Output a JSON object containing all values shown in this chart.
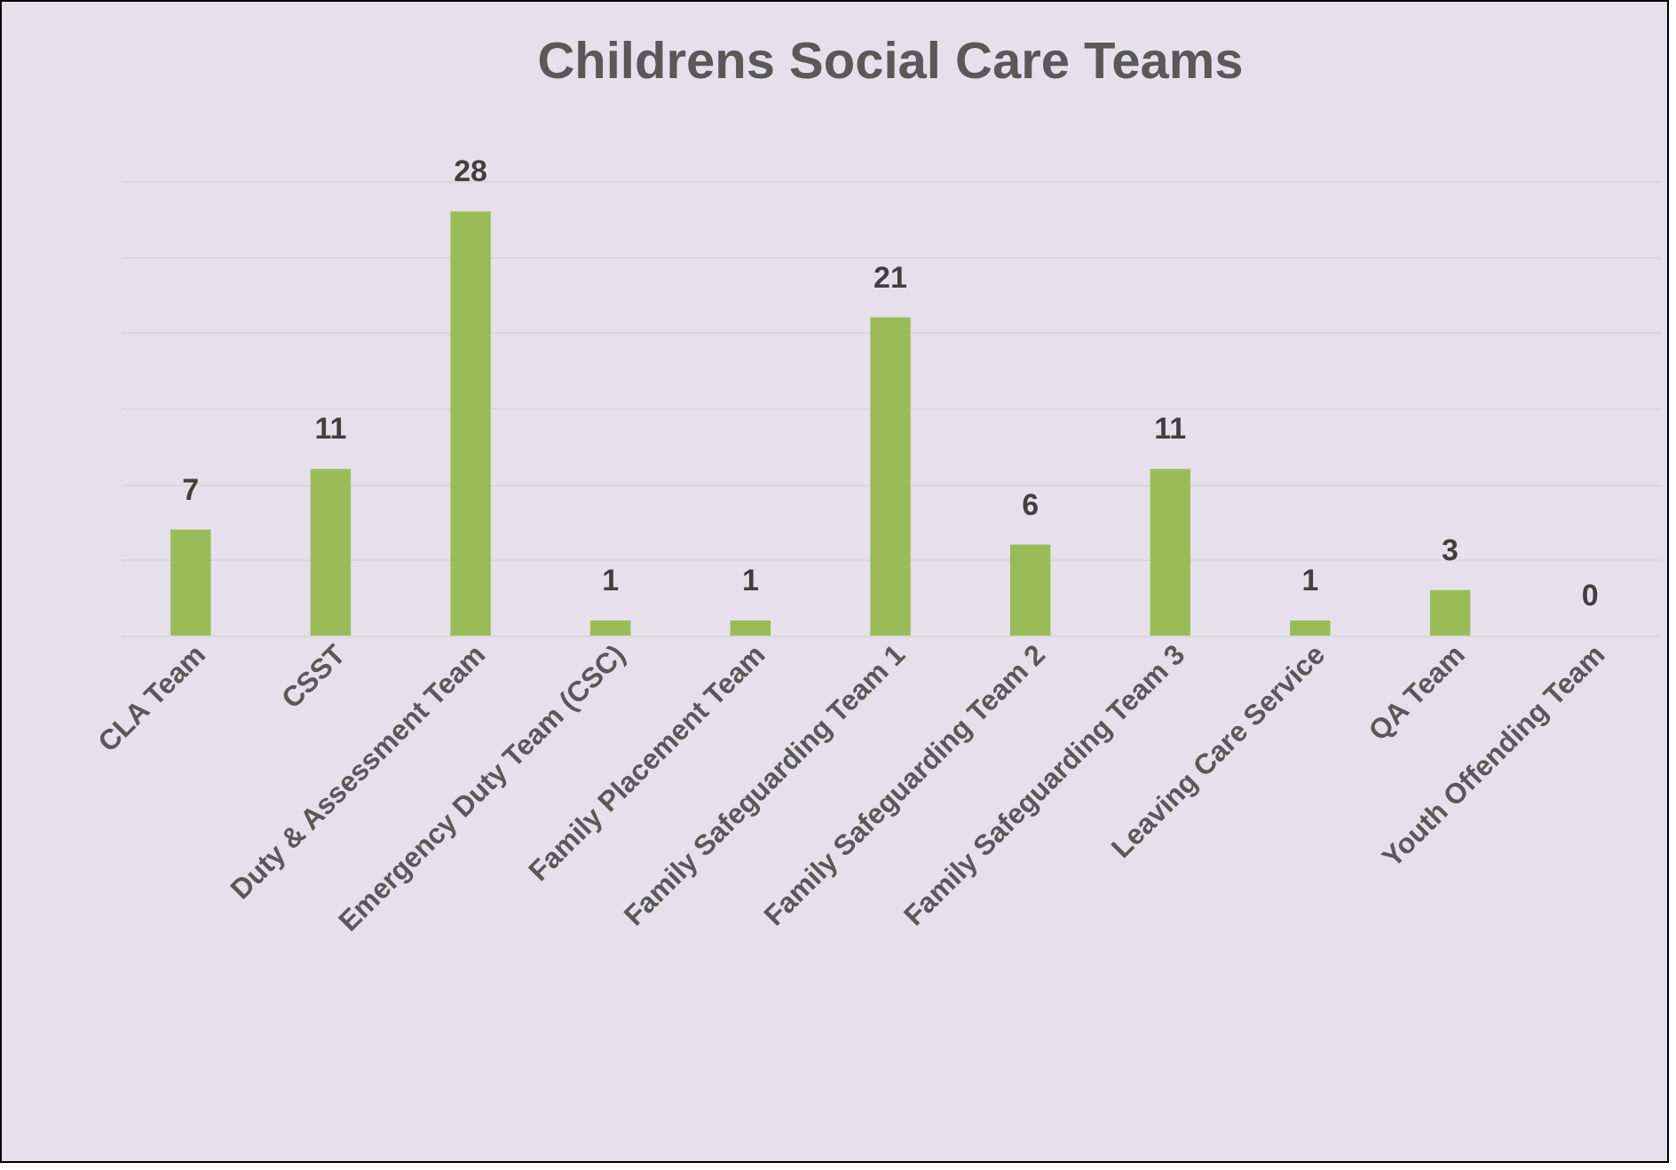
{
  "chart_data": {
    "type": "bar",
    "title": "Childrens Social Care Teams",
    "categories": [
      "CLA Team",
      "CSST",
      "Duty & Assessment Team",
      "Emergency Duty Team (CSC)",
      "Family Placement Team",
      "Family Safeguarding Team 1",
      "Family Safeguarding Team 2",
      "Family Safeguarding Team 3",
      "Leaving Care Service",
      "QA Team",
      "Youth Offending Team"
    ],
    "values": [
      7,
      11,
      28,
      1,
      1,
      21,
      6,
      11,
      1,
      3,
      0
    ],
    "color": "#9bbb59",
    "ylim": [
      0,
      30
    ],
    "yticks": [
      {
        "value": 0,
        "label": null
      },
      {
        "value": 5,
        "label": null
      },
      {
        "value": 10,
        "label": null
      },
      {
        "value": 15,
        "label": null
      },
      {
        "value": 20,
        "label": null
      },
      {
        "value": 25,
        "label": null
      },
      {
        "value": 30,
        "label": null
      }
    ],
    "grid": "y",
    "tick_labels": "x",
    "data_labels": true
  }
}
